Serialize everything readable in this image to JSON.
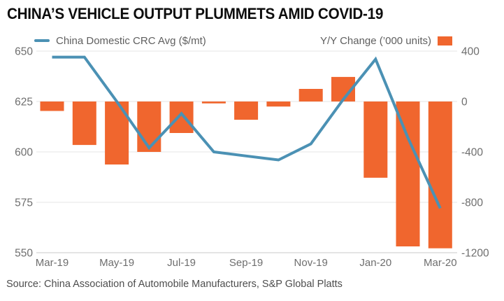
{
  "title": "CHINA’S VEHICLE OUTPUT PLUMMETS AMID COVID-19",
  "source": "Source: China Association of Automobile Manufacturers, S&P Global Platts",
  "legend": {
    "line_label": "China Domestic CRC Avg ($/mt)",
    "bar_label": "Y/Y Change (’000 units)"
  },
  "colors": {
    "line": "#4B91B4",
    "bar": "#F0662E",
    "grid": "#E4E4E4",
    "axis_line": "#C8C8C8",
    "axis_text": "#6E6E6E"
  },
  "chart_data": {
    "type": "bar",
    "subtype": "dual-axis combo: line (left axis) + bar (right axis)",
    "categories": [
      "Mar-19",
      "Apr-19",
      "May-19",
      "Jun-19",
      "Jul-19",
      "Aug-19",
      "Sep-19",
      "Oct-19",
      "Nov-19",
      "Dec-19",
      "Jan-20",
      "Feb-20",
      "Mar-20"
    ],
    "x_tick_labels": [
      "Mar-19",
      "May-19",
      "Jul-19",
      "Sep-19",
      "Nov-19",
      "Jan-20",
      "Mar-20"
    ],
    "series": [
      {
        "name": "China Domestic CRC Avg ($/mt)",
        "type": "line",
        "axis": "left",
        "values": [
          647,
          647,
          625,
          602,
          619,
          600,
          598,
          596,
          604,
          626,
          646,
          607,
          572
        ]
      },
      {
        "name": "Y/Y Change (’000 units)",
        "type": "bar",
        "axis": "right",
        "values": [
          -75,
          -345,
          -500,
          -400,
          -250,
          -15,
          -145,
          -40,
          100,
          195,
          -605,
          -1150,
          -1165
        ]
      }
    ],
    "left_axis": {
      "ticks": [
        650,
        625,
        600,
        575,
        550
      ],
      "range": [
        550,
        650
      ],
      "label": "$/mt"
    },
    "right_axis": {
      "ticks": [
        400,
        0,
        -400,
        -800,
        -1200
      ],
      "range": [
        -1200,
        400
      ],
      "label": "’000 units"
    },
    "grid": "horizontal gridlines only",
    "legend_position": "top",
    "title": "CHINA’S VEHICLE OUTPUT PLUMMETS AMID COVID-19"
  }
}
